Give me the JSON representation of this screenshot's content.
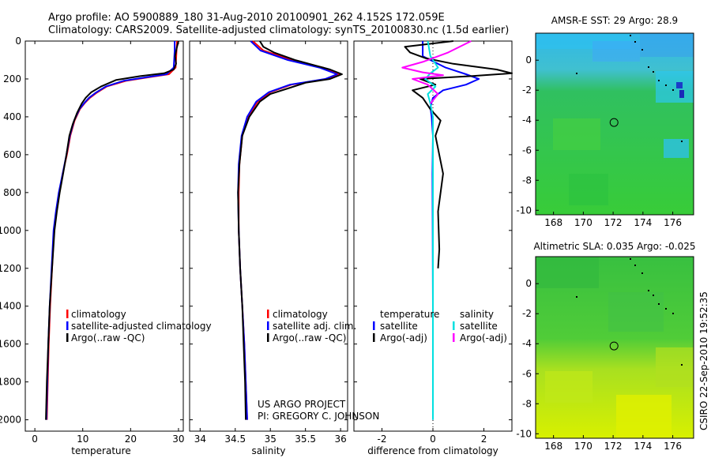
{
  "title": {
    "line1": "Argo profile: AO 5900889_180 31-Aug-2010 20100901_262 4.152S 172.059E",
    "line2": "Climatology: CARS2009. Satellite-adjusted climatology: synTS_20100830.nc (1.5d earlier)"
  },
  "side_label": "CSIRO 22-Sep-2010 19:52:35",
  "colors": {
    "climatology": "#ff0000",
    "satellite": "#0000ff",
    "argo": "#000000",
    "temp_sat": "#0000ff",
    "sal_sat": "#00e0e0",
    "sal_argo": "#ff00ff"
  },
  "chart_data": [
    {
      "type": "line",
      "id": "temperature",
      "xlabel": "temperature",
      "xlim": [
        -2,
        31
      ],
      "xticks": [
        "0",
        "10",
        "20",
        "30"
      ],
      "xtick_values": [
        0,
        10,
        20,
        30
      ],
      "ylim": [
        0,
        2060
      ],
      "yticks": [
        "0",
        "200",
        "400",
        "600",
        "800",
        "1000",
        "1200",
        "1400",
        "1600",
        "1800",
        "2000"
      ],
      "ytick_values": [
        0,
        200,
        400,
        600,
        800,
        1000,
        1200,
        1400,
        1600,
        1800,
        2000
      ],
      "legend": [
        "climatology",
        "satellite-adjusted climatology",
        "Argo(..raw -QC)"
      ],
      "series": [
        {
          "name": "climatology",
          "color": "#ff0000",
          "x": [
            29.7,
            29.6,
            29.4,
            28,
            24,
            19,
            15,
            12.8,
            11.5,
            10.5,
            9.4,
            8.3,
            7.4,
            6.7,
            5.8,
            5.1,
            4.5,
            4.0,
            3.6,
            3.2,
            2.9,
            2.7,
            2.5
          ],
          "y": [
            0,
            50,
            140,
            175,
            190,
            210,
            240,
            275,
            300,
            325,
            360,
            420,
            500,
            600,
            700,
            800,
            900,
            1000,
            1200,
            1400,
            1600,
            1800,
            2000
          ]
        },
        {
          "name": "satellite-adjusted climatology",
          "color": "#0000ff",
          "x": [
            29.2,
            29.2,
            29.0,
            27.5,
            23.5,
            18.5,
            14.8,
            12.6,
            11.3,
            10.4,
            9.3,
            8.2,
            7.3,
            6.6,
            5.8,
            5.0,
            4.4,
            3.9,
            3.5,
            3.1,
            2.8,
            2.6,
            2.4
          ],
          "y": [
            0,
            50,
            140,
            175,
            190,
            210,
            240,
            275,
            300,
            325,
            360,
            420,
            500,
            600,
            700,
            800,
            900,
            1000,
            1200,
            1400,
            1600,
            1800,
            2000
          ]
        },
        {
          "name": "Argo(..raw -QC)",
          "color": "#000000",
          "x": [
            30,
            29.6,
            29.3,
            29.5,
            29.0,
            27,
            22,
            17,
            13.8,
            11.8,
            10.6,
            9.8,
            8.8,
            7.9,
            7.2,
            6.6,
            5.9,
            5.2,
            4.6,
            4.1,
            3.6,
            3.1,
            2.8,
            2.5,
            2.3
          ],
          "y": [
            0,
            40,
            80,
            120,
            150,
            170,
            185,
            205,
            240,
            270,
            300,
            330,
            380,
            440,
            500,
            600,
            700,
            800,
            900,
            1000,
            1200,
            1400,
            1600,
            1800,
            2000
          ]
        }
      ]
    },
    {
      "type": "line",
      "id": "salinity",
      "xlabel": "salinity",
      "xlim": [
        33.85,
        36.1
      ],
      "xticks": [
        "34",
        "34.5",
        "35",
        "35.5",
        "36"
      ],
      "xtick_values": [
        34,
        34.5,
        35,
        35.5,
        36
      ],
      "ylim": [
        0,
        2060
      ],
      "legend": [
        "climatology",
        "satellite adj. clim.",
        "Argo(..raw -QC)"
      ],
      "series": [
        {
          "name": "climatology",
          "color": "#ff0000",
          "x": [
            34.75,
            34.9,
            35.3,
            35.75,
            35.98,
            35.8,
            35.3,
            35.0,
            34.82,
            34.68,
            34.6,
            34.56,
            34.55,
            34.55,
            34.57,
            34.6,
            34.63,
            34.65,
            34.66,
            34.67
          ],
          "y": [
            0,
            50,
            100,
            140,
            175,
            200,
            230,
            270,
            320,
            400,
            500,
            650,
            800,
            1000,
            1200,
            1400,
            1600,
            1800,
            1900,
            2000
          ]
        },
        {
          "name": "satellite adj. clim.",
          "color": "#0000ff",
          "x": [
            34.72,
            34.86,
            35.25,
            35.7,
            35.95,
            35.78,
            35.28,
            34.98,
            34.8,
            34.67,
            34.59,
            34.55,
            34.54,
            34.55,
            34.57,
            34.6,
            34.63,
            34.65,
            34.66,
            34.67
          ],
          "y": [
            0,
            50,
            100,
            140,
            175,
            200,
            230,
            270,
            320,
            400,
            500,
            650,
            800,
            1000,
            1200,
            1400,
            1600,
            1800,
            1900,
            2000
          ]
        },
        {
          "name": "Argo(..raw -QC)",
          "color": "#000000",
          "x": [
            34.85,
            34.9,
            35.05,
            35.35,
            35.65,
            35.85,
            36.02,
            35.85,
            35.5,
            35.25,
            35.0,
            34.85,
            34.7,
            34.6,
            34.56,
            34.54,
            34.55,
            34.57,
            34.6,
            34.62,
            34.64,
            34.65
          ],
          "y": [
            0,
            30,
            60,
            100,
            130,
            150,
            175,
            200,
            220,
            250,
            280,
            320,
            400,
            500,
            650,
            800,
            1000,
            1200,
            1400,
            1600,
            1800,
            2000
          ]
        }
      ]
    },
    {
      "type": "line",
      "id": "difference",
      "xlabel": "difference from climatology",
      "xlim": [
        -3.1,
        3.1
      ],
      "xticks": [
        "-2",
        "0",
        "2"
      ],
      "xtick_values": [
        -2,
        0,
        2
      ],
      "ylim": [
        0,
        2060
      ],
      "legend": [
        {
          "group": "temperature",
          "items": [
            "satellite",
            "Argo(-adj)"
          ]
        },
        {
          "group": "salinity",
          "items": [
            "satellite",
            "Argo(-adj)"
          ]
        }
      ],
      "series": [
        {
          "name": "temperature satellite",
          "color": "#0000ff",
          "x": [
            -0.4,
            -0.4,
            0.5,
            1.3,
            1.8,
            1.3,
            0.4,
            0.0,
            -0.1,
            -0.05,
            0.0,
            -0.02,
            -0.01,
            0.0,
            0.0,
            0.0
          ],
          "y": [
            0,
            80,
            140,
            175,
            200,
            230,
            260,
            300,
            350,
            400,
            500,
            700,
            1000,
            1400,
            1800,
            2000
          ]
        },
        {
          "name": "temperature Argo(-adj)",
          "color": "#000000",
          "x": [
            0.8,
            -1.1,
            -0.9,
            -0.3,
            0.8,
            2.5,
            3.2,
            1.5,
            -0.5,
            0.1,
            -0.8,
            -0.4,
            -0.1,
            0.3,
            0.1,
            0.4,
            0.2,
            0.25,
            0.2
          ],
          "y": [
            0,
            30,
            60,
            90,
            120,
            150,
            170,
            185,
            200,
            230,
            260,
            300,
            360,
            420,
            500,
            700,
            900,
            1100,
            1200
          ]
        },
        {
          "name": "salinity satellite",
          "color": "#00e0e0",
          "x": [
            -0.2,
            -0.1,
            0.2,
            -0.1,
            -0.3,
            0.1,
            -0.2,
            -0.1,
            0.0,
            0.0,
            0.0,
            0.0,
            0.0,
            0.0
          ],
          "y": [
            0,
            80,
            140,
            170,
            200,
            240,
            280,
            330,
            400,
            600,
            900,
            1300,
            1700,
            2000
          ]
        },
        {
          "name": "salinity Argo(-adj)",
          "color": "#ff00ff",
          "x": [
            1.5,
            0.6,
            -0.4,
            -1.2,
            -0.4,
            0.4,
            -0.8,
            -0.2,
            0.2,
            -0.1
          ],
          "y": [
            0,
            60,
            110,
            140,
            165,
            180,
            200,
            230,
            280,
            330
          ]
        }
      ]
    },
    {
      "type": "heatmap",
      "id": "sst_map",
      "title": "AMSR-E SST: 29 Argo: 28.9",
      "xticks": [
        "168",
        "170",
        "172",
        "174",
        "176"
      ],
      "xtick_values": [
        168,
        170,
        172,
        174,
        176
      ],
      "yticks": [
        "0",
        "-2",
        "-4",
        "-6",
        "-8",
        "-10"
      ],
      "ytick_values": [
        0,
        -2,
        -4,
        -6,
        -8,
        -10
      ],
      "xlim": [
        166.8,
        177.4
      ],
      "ylim": [
        -10.3,
        1.8
      ],
      "float_position": [
        172.06,
        -4.15
      ]
    },
    {
      "type": "heatmap",
      "id": "sla_map",
      "title": "Altimetric SLA: 0.035 Argo: -0.025",
      "xticks": [
        "168",
        "170",
        "172",
        "174",
        "176"
      ],
      "xtick_values": [
        168,
        170,
        172,
        174,
        176
      ],
      "yticks": [
        "0",
        "-2",
        "-4",
        "-6",
        "-8",
        "-10"
      ],
      "ytick_values": [
        0,
        -2,
        -4,
        -6,
        -8,
        -10
      ],
      "xlim": [
        166.8,
        177.4
      ],
      "ylim": [
        -10.3,
        1.8
      ],
      "float_position": [
        172.06,
        -4.15
      ]
    }
  ],
  "credits": {
    "line1": "US ARGO PROJECT",
    "line2": "PI: GREGORY C. JOHNSON"
  }
}
